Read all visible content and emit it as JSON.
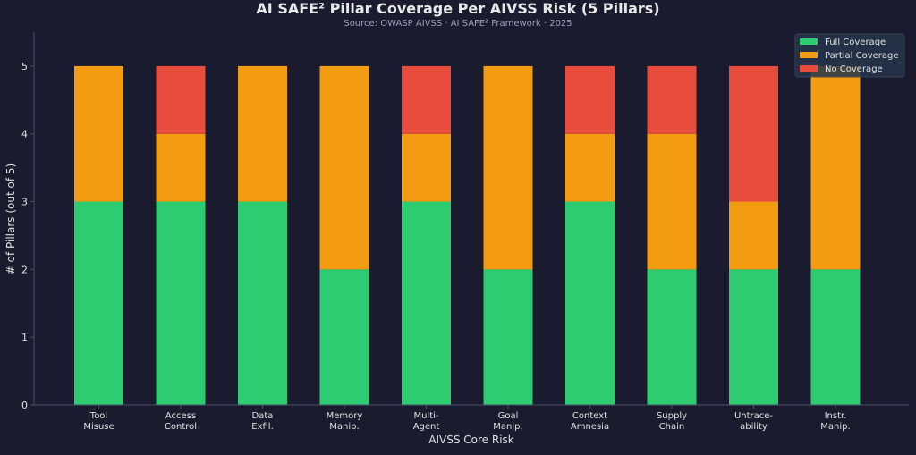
{
  "chart_data": {
    "type": "bar",
    "stacked": true,
    "title": "AI SAFE² Pillar Coverage Per AIVSS Risk (5 Pillars)",
    "subtitle": "Source: OWASP AIVSS · AI SAFE² Framework · 2025",
    "xlabel": "AIVSS Core Risk",
    "ylabel": "# of Pillars (out of 5)",
    "ylim": [
      0,
      5.5
    ],
    "yticks": [
      0,
      1,
      2,
      3,
      4,
      5
    ],
    "grid": false,
    "legend_placement": "top-right",
    "categories": [
      [
        "Tool",
        "Misuse"
      ],
      [
        "Access",
        "Control"
      ],
      [
        "Data",
        "Exfil."
      ],
      [
        "Memory",
        "Manip."
      ],
      [
        "Multi-",
        "Agent"
      ],
      [
        "Goal",
        "Manip."
      ],
      [
        "Context",
        "Amnesia"
      ],
      [
        "Supply",
        "Chain"
      ],
      [
        "Untrace-",
        "ability"
      ],
      [
        "Instr.",
        "Manip."
      ]
    ],
    "series": [
      {
        "name": "Full Coverage",
        "color": "#2ecc71",
        "values": [
          3,
          3,
          3,
          2,
          3,
          2,
          3,
          2,
          2,
          2
        ]
      },
      {
        "name": "Partial Coverage",
        "color": "#f39c12",
        "values": [
          2,
          1,
          2,
          3,
          1,
          3,
          1,
          2,
          1,
          3
        ]
      },
      {
        "name": "No Coverage",
        "color": "#e74c3c",
        "values": [
          0,
          1,
          0,
          0,
          1,
          0,
          1,
          1,
          2,
          0
        ]
      }
    ],
    "colors": {
      "background": "#1a1b2e",
      "text": "#e0e0e0",
      "axis": "#4a5068",
      "legend_bg": "#25344a"
    }
  }
}
